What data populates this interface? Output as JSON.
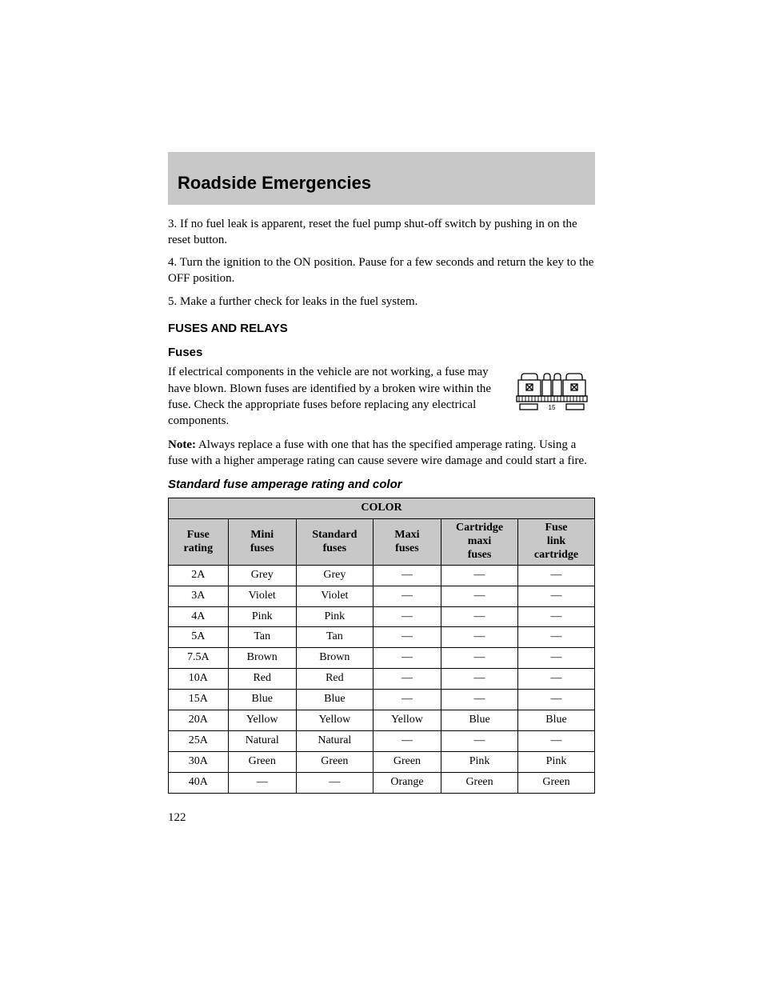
{
  "header": {
    "title": "Roadside Emergencies",
    "bar_bg": "#c8c8c8"
  },
  "steps": [
    "3. If no fuel leak is apparent, reset the fuel pump shut-off switch by pushing in on the reset button.",
    "4. Turn the ignition to the ON position. Pause for a few seconds and return the key to the OFF position.",
    "5. Make a further check for leaks in the fuel system."
  ],
  "section_heading": "FUSES AND RELAYS",
  "fuses": {
    "subheading": "Fuses",
    "intro": "If electrical components in the vehicle are not working, a fuse may have blown. Blown fuses are identified by a broken wire within the fuse. Check the appropriate fuses before replacing any electrical components.",
    "note_label": "Note:",
    "note_text": " Always replace a fuse with one that has the specified amperage rating. Using a fuse with a higher amperage rating can cause severe wire damage and could start a fire.",
    "diagram_label": "15"
  },
  "table_heading": "Standard fuse amperage rating and color",
  "table": {
    "super_header": "COLOR",
    "columns": [
      "Fuse rating",
      "Mini fuses",
      "Standard fuses",
      "Maxi fuses",
      "Cartridge maxi fuses",
      "Fuse link cartridge"
    ],
    "header_bg": "#c8c8c8",
    "border_color": "#000000",
    "col_widths": [
      "14%",
      "16%",
      "18%",
      "16%",
      "18%",
      "18%"
    ],
    "rows": [
      [
        "2A",
        "Grey",
        "Grey",
        "—",
        "—",
        "—"
      ],
      [
        "3A",
        "Violet",
        "Violet",
        "—",
        "—",
        "—"
      ],
      [
        "4A",
        "Pink",
        "Pink",
        "—",
        "—",
        "—"
      ],
      [
        "5A",
        "Tan",
        "Tan",
        "—",
        "—",
        "—"
      ],
      [
        "7.5A",
        "Brown",
        "Brown",
        "—",
        "—",
        "—"
      ],
      [
        "10A",
        "Red",
        "Red",
        "—",
        "—",
        "—"
      ],
      [
        "15A",
        "Blue",
        "Blue",
        "—",
        "—",
        "—"
      ],
      [
        "20A",
        "Yellow",
        "Yellow",
        "Yellow",
        "Blue",
        "Blue"
      ],
      [
        "25A",
        "Natural",
        "Natural",
        "—",
        "—",
        "—"
      ],
      [
        "30A",
        "Green",
        "Green",
        "Green",
        "Pink",
        "Pink"
      ],
      [
        "40A",
        "—",
        "—",
        "Orange",
        "Green",
        "Green"
      ]
    ]
  },
  "page_number": "122"
}
